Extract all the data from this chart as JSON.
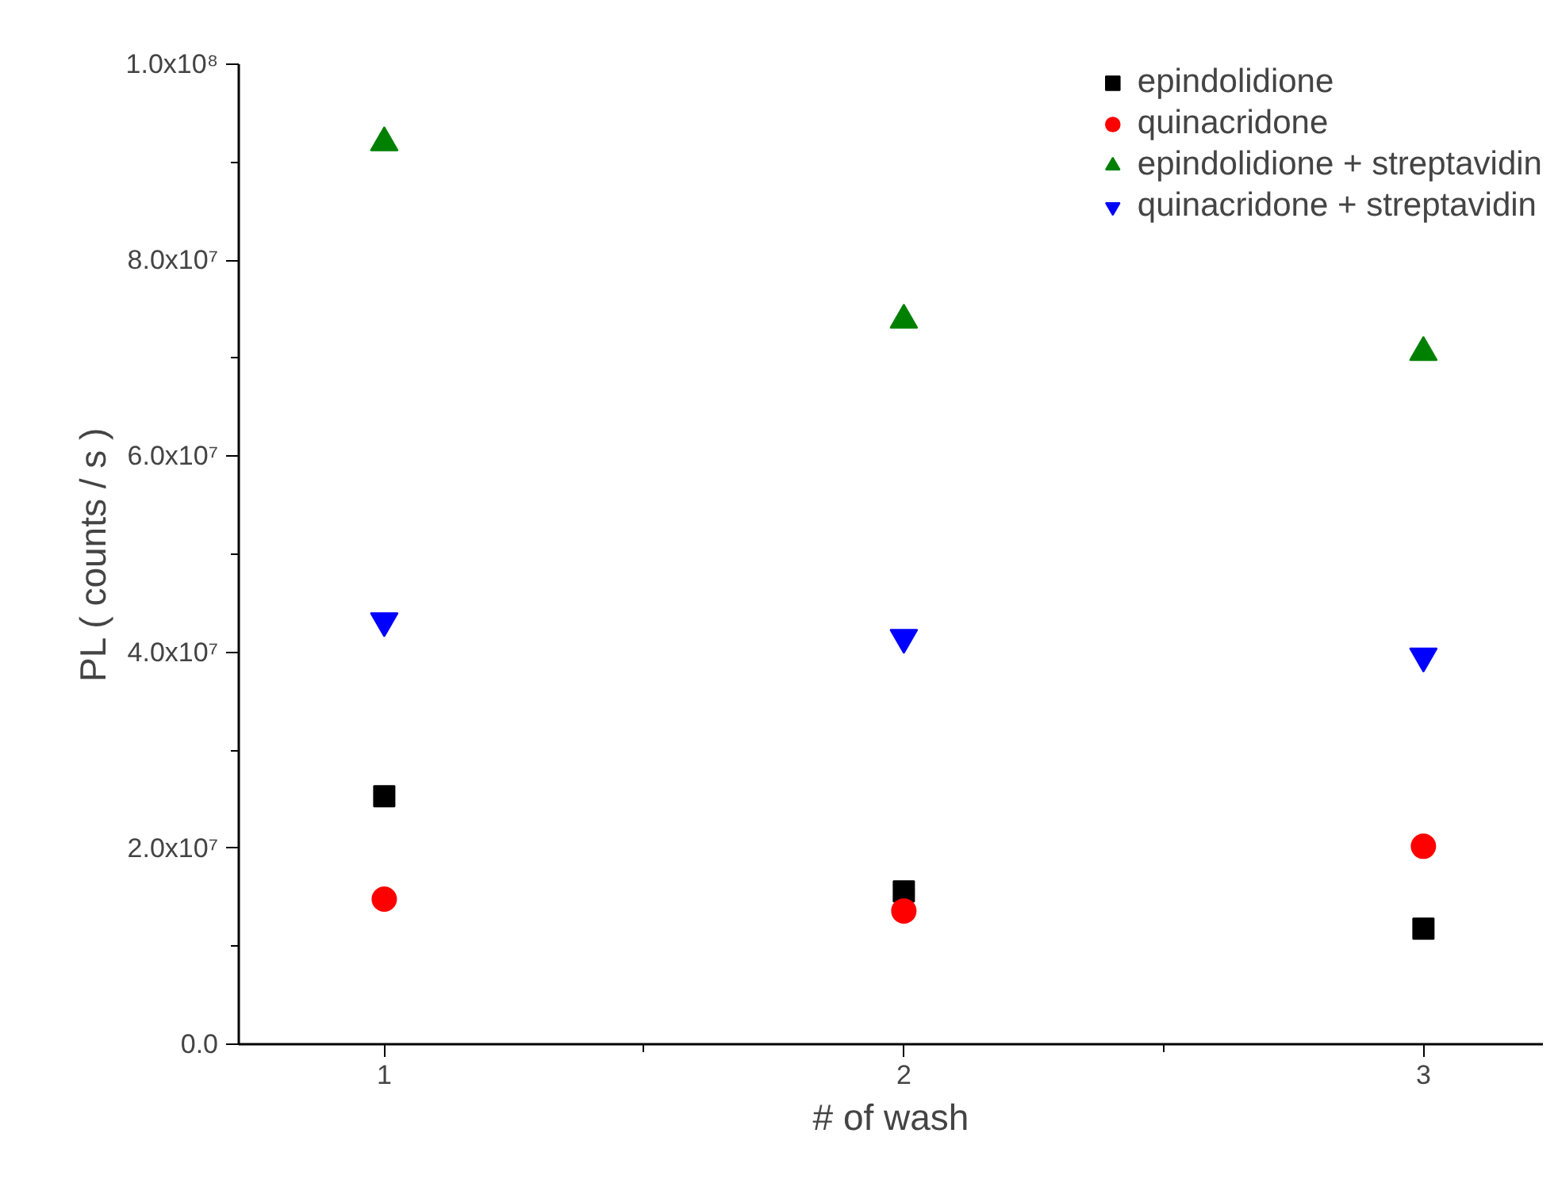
{
  "chart_data": {
    "type": "scatter",
    "xlabel": "# of wash",
    "ylabel": "PL ( counts / s )",
    "x": [
      1,
      2,
      3
    ],
    "series": [
      {
        "name": "epindolidione",
        "color": "#000000",
        "marker": "square",
        "values": [
          25300000,
          15600000,
          11800000
        ]
      },
      {
        "name": "quinacridone",
        "color": "#ff0000",
        "marker": "circle",
        "values": [
          14800000,
          13600000,
          20200000
        ]
      },
      {
        "name": "epindolidione + streptavidin",
        "color": "#008000",
        "marker": "triangle",
        "values": [
          92000000,
          73900000,
          70600000
        ]
      },
      {
        "name": "quinacridone + streptavidin",
        "color": "#0000ff",
        "marker": "triangle_down",
        "values": [
          43200000,
          41500000,
          39600000
        ]
      }
    ],
    "xlim": [
      0.72,
      3.23
    ],
    "xticks": [
      1,
      {
        "value": 1.5,
        "label": null
      },
      2,
      {
        "value": 2.5,
        "label": null
      },
      3
    ],
    "ylim": [
      0,
      100000000
    ],
    "yticks": [
      {
        "value": 0,
        "label": "0.0"
      },
      {
        "value": 10000000,
        "label": null
      },
      {
        "value": 20000000,
        "label": "2.0x10⁷"
      },
      {
        "value": 30000000,
        "label": null
      },
      {
        "value": 40000000,
        "label": "4.0x10⁷"
      },
      {
        "value": 50000000,
        "label": null
      },
      {
        "value": 60000000,
        "label": "6.0x10⁷"
      },
      {
        "value": 70000000,
        "label": null
      },
      {
        "value": 80000000,
        "label": "8.0x10⁷"
      },
      {
        "value": 90000000,
        "label": null
      },
      {
        "value": 100000000,
        "label": "1.0x10⁸"
      }
    ],
    "grid": false,
    "legend": "top right"
  }
}
